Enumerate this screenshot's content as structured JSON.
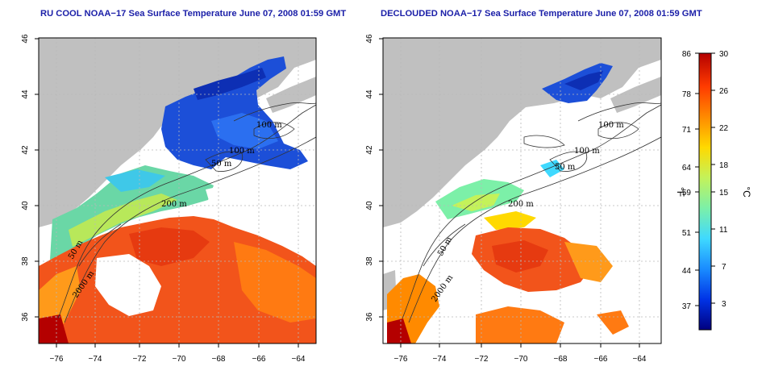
{
  "panels": [
    {
      "title": "RU COOL NOAA−17 Sea Surface Temperature June 07, 2008 01:59 GMT",
      "contour_labels": [
        "100 m",
        "100 m",
        "50 m",
        "200 m",
        "50 m",
        "2000 m"
      ]
    },
    {
      "title": "DECLOUDED NOAA−17 Sea Surface Temperature June 07, 2008 01:59 GMT",
      "contour_labels": [
        "100 m",
        "100 m",
        "50 m",
        "200 m",
        "50 m",
        "2000 m"
      ]
    }
  ],
  "axes": {
    "lon_ticks": [
      "−76",
      "−74",
      "−72",
      "−70",
      "−68",
      "−66",
      "−64"
    ],
    "lat_ticks": [
      "36",
      "38",
      "40",
      "42",
      "44",
      "46"
    ],
    "lon_range": [
      -77.2,
      -63.0
    ],
    "lat_range": [
      35.0,
      46.0
    ]
  },
  "colorbar": {
    "fahrenheit_unit": "°F",
    "celsius_unit": "°C",
    "fahrenheit_ticks": [
      "86",
      "78",
      "71",
      "64",
      "59",
      "51",
      "44",
      "37"
    ],
    "celsius_ticks": [
      "30",
      "26",
      "22",
      "18",
      "15",
      "11",
      "7",
      "3"
    ],
    "celsius_range": [
      0,
      30
    ],
    "colors": [
      "#00007f",
      "#0033e6",
      "#1a8cff",
      "#3fd9ff",
      "#7cf0a8",
      "#c4f25a",
      "#ffd900",
      "#ff8a00",
      "#ff3b00",
      "#b40000"
    ]
  },
  "colors": {
    "land": "#c0c0c0",
    "cold_water": "#1c4fd8",
    "warm_water": "#f2541b",
    "title": "#1b1fa8"
  }
}
